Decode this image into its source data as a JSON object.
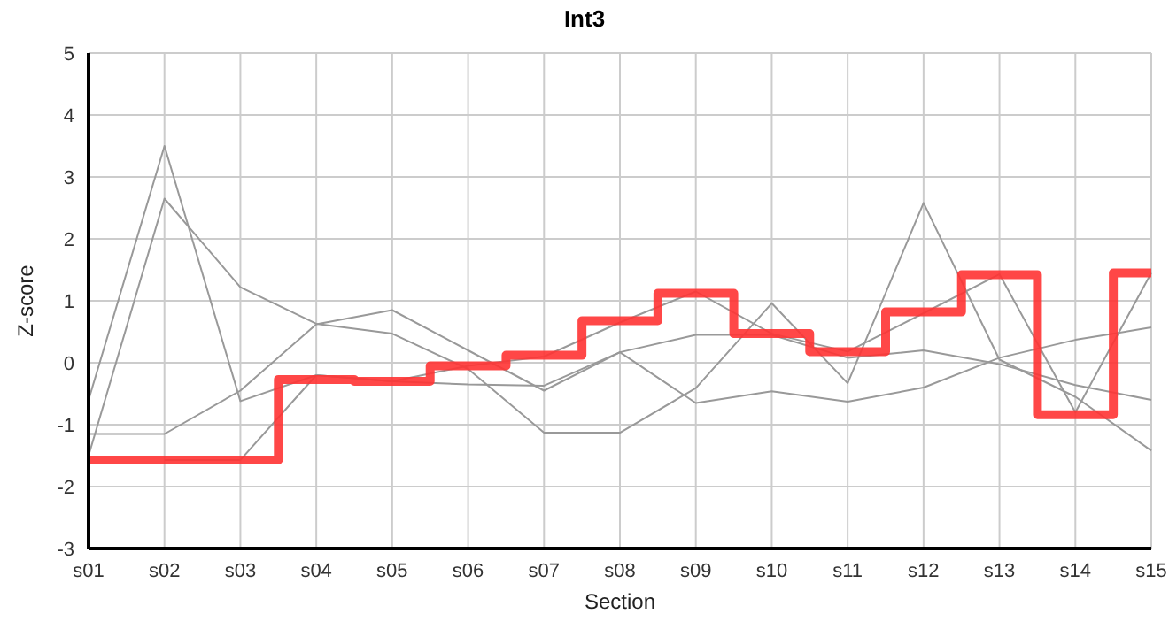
{
  "chart_data": {
    "type": "line",
    "title": "Int3",
    "xlabel": "Section",
    "ylabel": "Z-score",
    "categories": [
      "s01",
      "s02",
      "s03",
      "s04",
      "s05",
      "s06",
      "s07",
      "s08",
      "s09",
      "s10",
      "s11",
      "s12",
      "s13",
      "s14",
      "s15"
    ],
    "series": [
      {
        "color": "#999999",
        "values": [
          -0.6,
          3.5,
          -0.62,
          -0.2,
          -0.3,
          -0.35,
          -0.37,
          0.17,
          0.45,
          0.45,
          0.08,
          0.2,
          -0.02,
          -0.36,
          -0.6
        ]
      },
      {
        "color": "#999999",
        "values": [
          -1.5,
          2.65,
          1.22,
          0.63,
          0.47,
          -0.1,
          -1.13,
          -1.13,
          -0.41,
          0.96,
          -0.33,
          2.58,
          0.05,
          -0.55,
          -1.42
        ]
      },
      {
        "color": "#999999",
        "values": [
          -1.15,
          -1.15,
          -0.45,
          0.62,
          0.85,
          0.2,
          -0.45,
          0.17,
          -0.65,
          -0.46,
          -0.63,
          -0.4,
          0.08,
          0.37,
          0.57
        ]
      },
      {
        "color": "#999999",
        "values": [
          null,
          -1.57,
          -1.57,
          -0.2,
          -0.3,
          -0.05,
          0.1,
          0.65,
          1.15,
          0.47,
          0.18,
          0.8,
          1.43,
          -0.8,
          1.45
        ]
      },
      {
        "type": "step",
        "color": "#ff3333",
        "values": [
          -1.57,
          -1.57,
          -1.57,
          -0.27,
          -0.3,
          -0.05,
          0.12,
          0.68,
          1.12,
          0.47,
          0.18,
          0.82,
          1.42,
          -0.84,
          1.45
        ]
      }
    ],
    "ylim": [
      -3,
      5
    ],
    "yticks": [
      -3,
      -2,
      -1,
      0,
      1,
      2,
      3,
      4,
      5
    ],
    "grid": true,
    "legend": false,
    "marker": "none"
  }
}
